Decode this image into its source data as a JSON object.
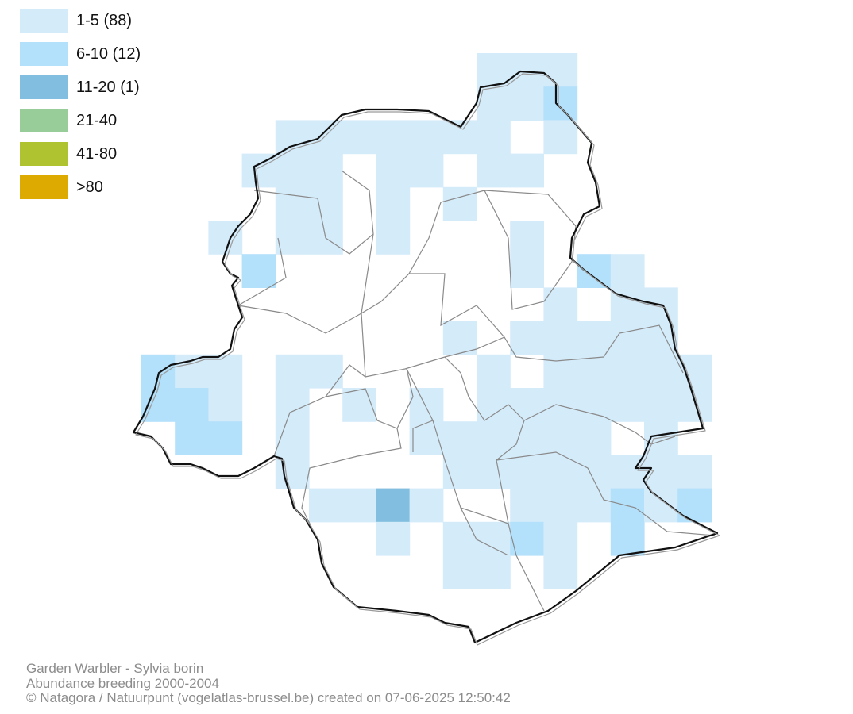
{
  "legend": {
    "items": [
      {
        "label": "1-5 (88)",
        "color": "#d4ebfa"
      },
      {
        "label": "6-10 (12)",
        "color": "#b3e0fa"
      },
      {
        "label": "11-20 (1)",
        "color": "#82bedf"
      },
      {
        "label": "21-40",
        "color": "#98cc98"
      },
      {
        "label": "41-80",
        "color": "#afc22f"
      },
      {
        "label": ">80",
        "color": "#dcaa00"
      }
    ]
  },
  "map": {
    "layers": [
      "abundance-grid",
      "municipality-boundaries",
      "region-outline"
    ]
  },
  "footer": {
    "species": "Garden Warbler - Sylvia borin",
    "subtitle": "Abundance breeding 2000-2004",
    "credit": "© Natagora / Natuurpunt (vogelatlas-brussel.be) created on 07-06-2025 12:50:42"
  }
}
